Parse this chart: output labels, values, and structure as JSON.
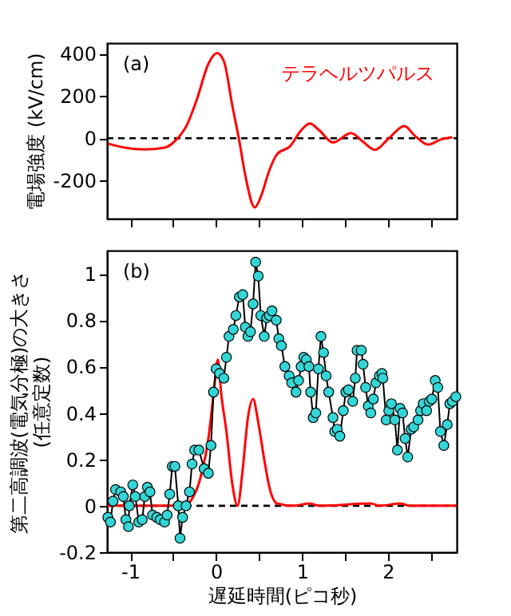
{
  "chart_data": [
    {
      "type": "line",
      "ylabel": "電場強度 (kV/cm)",
      "xlim": [
        -1.27,
        2.8
      ],
      "ylim": [
        -380,
        450
      ],
      "yticks": [
        -200,
        0,
        200,
        400
      ],
      "xticks": [
        {
          "value": -1,
          "label": null
        },
        {
          "value": -0.5,
          "label": null
        },
        {
          "value": 0,
          "label": null
        },
        {
          "value": 0.5,
          "label": null
        },
        {
          "value": 1,
          "label": null
        },
        {
          "value": 1.5,
          "label": null
        },
        {
          "value": 2,
          "label": null
        },
        {
          "value": 2.5,
          "label": null
        }
      ],
      "tick_labels": "y",
      "grid": false,
      "annotations": [
        "(a)"
      ],
      "ref_lines": [
        {
          "axis": "y",
          "value": 0,
          "color": "#000000",
          "line_style": "dashed"
        }
      ],
      "series": [
        {
          "name": "テラヘルツパルス",
          "color": "#ff0000",
          "marker": "none",
          "x": [
            -1.26,
            -1.08,
            -0.83,
            -0.59,
            -0.46,
            -0.34,
            -0.22,
            -0.09,
            0.01,
            0.09,
            0.19,
            0.27,
            0.34,
            0.45,
            0.52,
            0.62,
            0.71,
            0.86,
            0.99,
            1.09,
            1.2,
            1.36,
            1.57,
            1.7,
            1.85,
            2.01,
            2.19,
            2.31,
            2.47,
            2.62,
            2.75
          ],
          "values": [
            -25,
            -43,
            -53,
            -43,
            -5,
            63,
            189,
            352,
            403,
            365,
            151,
            -13,
            -176,
            -327,
            -277,
            -151,
            -75,
            -38,
            38,
            70,
            38,
            -20,
            25,
            -13,
            -55,
            0,
            58,
            13,
            -30,
            -5,
            5
          ]
        }
      ]
    },
    {
      "type": "line",
      "ylabel": "第二高調波(電気分極)の大きさ\n(任意定数)",
      "xlabel": "遅延時間(ピコ秒)",
      "xlim": [
        -1.27,
        2.8
      ],
      "ylim": [
        -0.2,
        1.1
      ],
      "yticks": [
        -0.2,
        0,
        0.2,
        0.4,
        0.6,
        0.8,
        1
      ],
      "xticks": [
        -1,
        {
          "value": -0.5,
          "label": null
        },
        0,
        {
          "value": 0.5,
          "label": null
        },
        1,
        {
          "value": 1.5,
          "label": null
        },
        2,
        {
          "value": 2.5,
          "label": null
        }
      ],
      "grid": false,
      "annotations": [
        "(b)"
      ],
      "ref_lines": [
        {
          "axis": "y",
          "value": 0,
          "color": "#000000",
          "line_style": "dashed"
        }
      ],
      "series": [
        {
          "color": "#ff0000",
          "marker": "none",
          "x": [
            -1.26,
            -0.5,
            -0.37,
            -0.28,
            -0.19,
            -0.09,
            -0.03,
            0.02,
            0.06,
            0.12,
            0.19,
            0.25,
            0.31,
            0.37,
            0.43,
            0.49,
            0.56,
            0.62,
            0.71,
            0.9,
            1.09,
            1.2,
            1.8,
            1.9,
            2.15,
            2.25,
            2.8
          ],
          "values": [
            0,
            0,
            0,
            0.03,
            0.11,
            0.29,
            0.48,
            0.63,
            0.48,
            0.32,
            0.09,
            0,
            0.16,
            0.38,
            0.46,
            0.36,
            0.2,
            0.08,
            0.01,
            0,
            0.01,
            0,
            0.01,
            0,
            0.01,
            0,
            0
          ]
        },
        {
          "color": "#33d6d6",
          "marker": "circle",
          "x": [
            -1.26,
            -1.23,
            -1.2,
            -1.17,
            -1.11,
            -1.08,
            -1.05,
            -1.02,
            -1.01,
            -0.97,
            -0.94,
            -0.9,
            -0.86,
            -0.83,
            -0.8,
            -0.77,
            -0.74,
            -0.69,
            -0.65,
            -0.6,
            -0.57,
            -0.54,
            -0.51,
            -0.48,
            -0.44,
            -0.42,
            -0.39,
            -0.35,
            -0.31,
            -0.28,
            -0.25,
            -0.2,
            -0.14,
            -0.09,
            -0.06,
            -0.03,
            0,
            0.04,
            0.09,
            0.12,
            0.15,
            0.2,
            0.23,
            0.27,
            0.31,
            0.34,
            0.37,
            0.4,
            0.43,
            0.46,
            0.49,
            0.52,
            0.56,
            0.59,
            0.62,
            0.65,
            0.7,
            0.73,
            0.76,
            0.8,
            0.85,
            0.88,
            0.93,
            0.96,
            0.99,
            1.02,
            1.05,
            1.08,
            1.1,
            1.13,
            1.16,
            1.19,
            1.22,
            1.25,
            1.28,
            1.31,
            1.36,
            1.38,
            1.41,
            1.44,
            1.48,
            1.51,
            1.54,
            1.59,
            1.62,
            1.64,
            1.69,
            1.71,
            1.74,
            1.77,
            1.8,
            1.83,
            1.86,
            1.9,
            1.93,
            1.94,
            1.98,
            2.01,
            2.04,
            2.08,
            2.11,
            2.14,
            2.17,
            2.2,
            2.23,
            2.27,
            2.3,
            2.35,
            2.38,
            2.41,
            2.45,
            2.48,
            2.51,
            2.55,
            2.58,
            2.61,
            2.65,
            2.69,
            2.72,
            2.75,
            2.79
          ],
          "values": [
            -0.05,
            -0.07,
            0.02,
            0.07,
            0.06,
            0.04,
            -0.06,
            -0.09,
            0.0,
            0.09,
            0.04,
            -0.07,
            -0.06,
            0.04,
            0.08,
            0.06,
            -0.04,
            -0.05,
            -0.06,
            -0.07,
            -0.04,
            0.05,
            0.17,
            0.17,
            0.0,
            -0.14,
            -0.05,
            0.0,
            0.06,
            0.18,
            0.24,
            0.24,
            0.16,
            0.14,
            0.26,
            0.49,
            0.59,
            0.57,
            0.55,
            0.64,
            0.73,
            0.76,
            0.82,
            0.9,
            0.91,
            0.77,
            0.73,
            0.75,
            0.87,
            1.05,
            0.99,
            0.82,
            0.73,
            0.81,
            0.82,
            0.84,
            0.8,
            0.72,
            0.69,
            0.6,
            0.56,
            0.53,
            0.49,
            0.54,
            0.6,
            0.64,
            0.63,
            0.6,
            0.49,
            0.38,
            0.4,
            0.59,
            0.73,
            0.66,
            0.56,
            0.49,
            0.38,
            0.32,
            0.33,
            0.3,
            0.41,
            0.49,
            0.5,
            0.45,
            0.55,
            0.67,
            0.67,
            0.61,
            0.51,
            0.43,
            0.4,
            0.46,
            0.53,
            0.56,
            0.57,
            0.55,
            0.37,
            0.41,
            0.44,
            0.37,
            0.24,
            0.42,
            0.4,
            0.29,
            0.21,
            0.33,
            0.34,
            0.37,
            0.41,
            0.44,
            0.41,
            0.45,
            0.46,
            0.54,
            0.51,
            0.32,
            0.26,
            0.35,
            0.44,
            0.45,
            0.47
          ]
        }
      ]
    }
  ]
}
